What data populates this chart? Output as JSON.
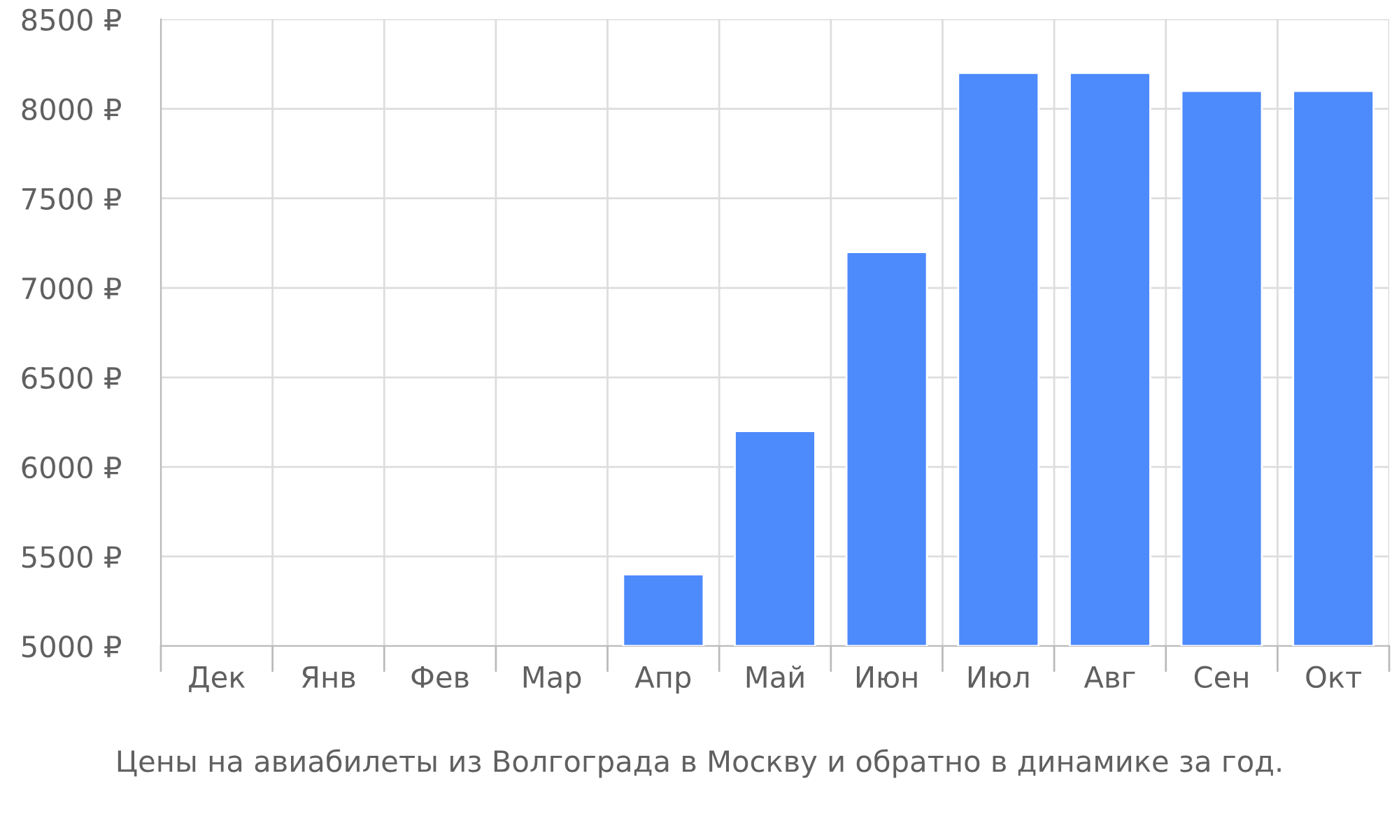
{
  "chart_data": {
    "type": "bar",
    "categories": [
      "Дек",
      "Янв",
      "Фев",
      "Мар",
      "Апр",
      "Май",
      "Июн",
      "Июл",
      "Авг",
      "Сен",
      "Окт"
    ],
    "values": [
      null,
      null,
      null,
      null,
      5400,
      6200,
      7200,
      8200,
      8200,
      8100,
      8100
    ],
    "color": "#4d8afc",
    "ylim": [
      5000,
      8500
    ],
    "yticks": [
      {
        "value": 5000,
        "label": "5000 ₽"
      },
      {
        "value": 5500,
        "label": "5500 ₽"
      },
      {
        "value": 6000,
        "label": "6000 ₽"
      },
      {
        "value": 6500,
        "label": "6500 ₽"
      },
      {
        "value": 7000,
        "label": "7000 ₽"
      },
      {
        "value": 7500,
        "label": "7500 ₽"
      },
      {
        "value": 8000,
        "label": "8000 ₽"
      },
      {
        "value": 8500,
        "label": "8500 ₽"
      }
    ],
    "grid": true,
    "annotations": [
      "Цены на авиабилеты из Волгограда в Москву и обратно в динамике за год."
    ]
  }
}
